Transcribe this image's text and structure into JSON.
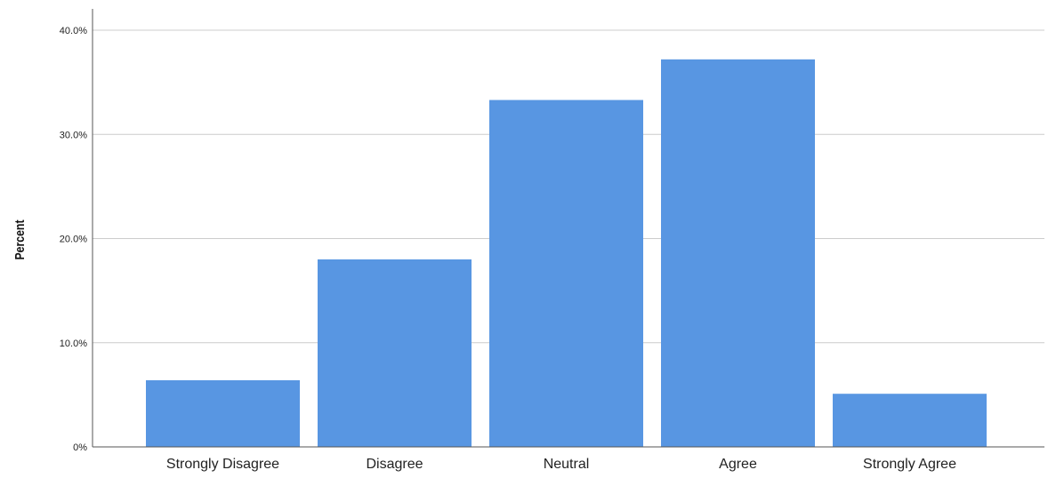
{
  "colors": {
    "bar": "#5896e2",
    "grid": "#cccccc",
    "axis": "#555555",
    "background": "#ffffff"
  },
  "chart_data": {
    "type": "bar",
    "title": "",
    "xlabel": "",
    "ylabel": "Percent",
    "categories": [
      "Strongly Disagree",
      "Disagree",
      "Neutral",
      "Agree",
      "Strongly Agree"
    ],
    "values": [
      6.4,
      18.0,
      33.3,
      37.2,
      5.1
    ],
    "ylim": [
      0,
      40
    ],
    "yticks": [
      0,
      10,
      20,
      30,
      40
    ],
    "ytick_labels": [
      "0%",
      "10.0%",
      "20.0%",
      "30.0%",
      "40.0%"
    ],
    "grid": true,
    "legend": "none"
  }
}
